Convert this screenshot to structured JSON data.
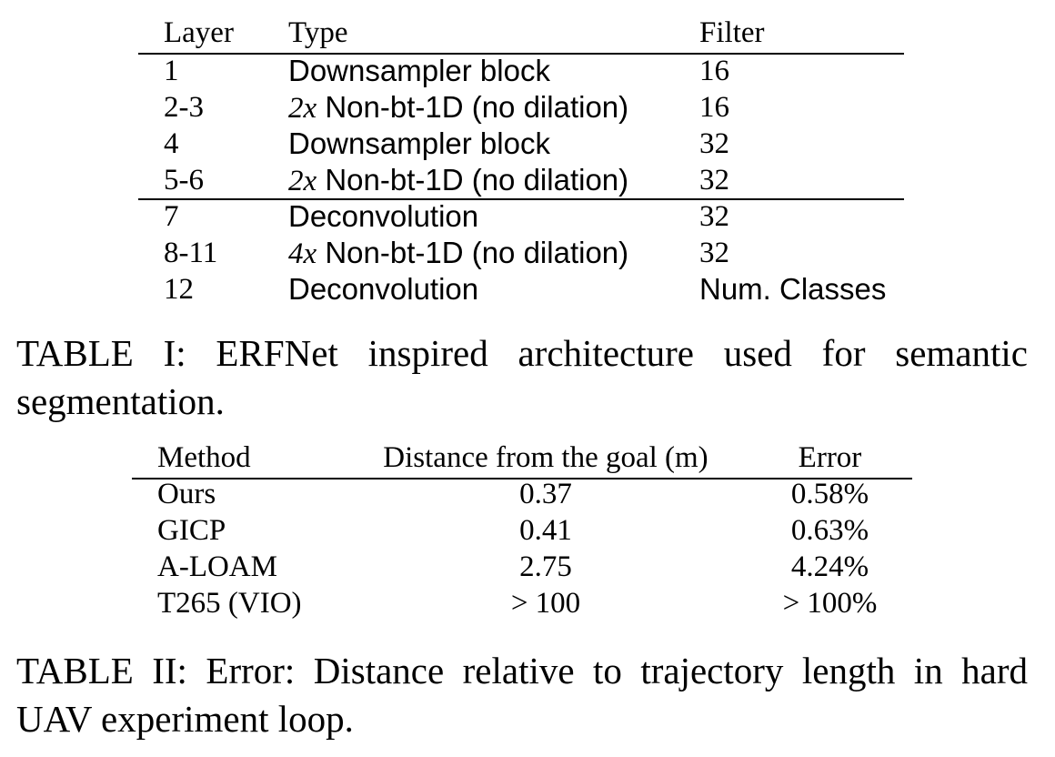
{
  "table1": {
    "headers": {
      "layer": "Layer",
      "type": "Type",
      "filter": "Filter"
    },
    "rows": [
      {
        "layer": "1",
        "type": "Downsampler block",
        "filter": "16"
      },
      {
        "layer": "2-3",
        "type_mult": "2x",
        "type": " Non-bt-1D (no dilation)",
        "filter": "16"
      },
      {
        "layer": "4",
        "type": "Downsampler block",
        "filter": "32"
      },
      {
        "layer": "5-6",
        "type_mult": "2x",
        "type": " Non-bt-1D (no dilation)",
        "filter": "32"
      },
      {
        "layer": "7",
        "type": "Deconvolution",
        "filter": "32"
      },
      {
        "layer": "8-11",
        "type_mult": "4x",
        "type": " Non-bt-1D (no dilation)",
        "filter": "32"
      },
      {
        "layer": "12",
        "type": "Deconvolution",
        "filter": "Num. Classes"
      }
    ],
    "caption_line1": "TABLE I: ERFNet inspired architecture used for semantic",
    "caption_line2": "segmentation."
  },
  "table2": {
    "headers": {
      "method": "Method",
      "distance": "Distance from the goal (m)",
      "error": "Error"
    },
    "rows": [
      {
        "method": "Ours",
        "distance": "0.37",
        "error": "0.58%"
      },
      {
        "method": "GICP",
        "distance": "0.41",
        "error": "0.63%"
      },
      {
        "method": "A-LOAM",
        "distance": "2.75",
        "error": "4.24%"
      },
      {
        "method": "T265 (VIO)",
        "distance": "> 100",
        "error": "> 100%"
      }
    ],
    "caption_line1": "TABLE II: Error: Distance relative to trajectory length in hard",
    "caption_line2": "UAV experiment loop."
  }
}
